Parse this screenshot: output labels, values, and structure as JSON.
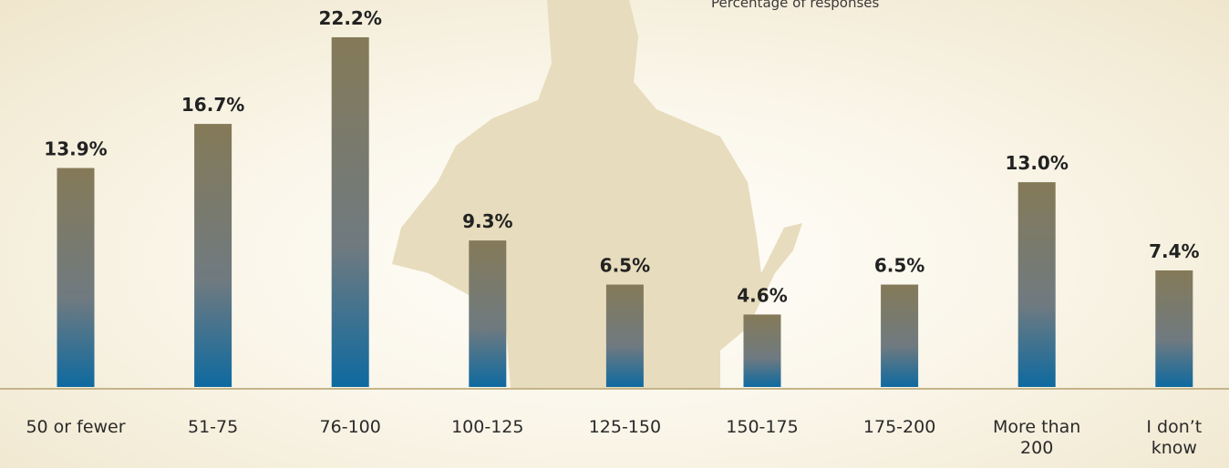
{
  "chart_data": {
    "type": "bar",
    "subtitle": "Percentage of responses",
    "categories": [
      "50 or fewer",
      "51-75",
      "76-100",
      "100-125",
      "125-150",
      "150-175",
      "175-200",
      "More than 200",
      "I don’t know"
    ],
    "values": [
      13.9,
      16.7,
      22.2,
      9.3,
      6.5,
      4.6,
      6.5,
      13.0,
      7.4
    ],
    "value_labels": [
      "13.9%",
      "16.7%",
      "22.2%",
      "9.3%",
      "6.5%",
      "4.6%",
      "6.5%",
      "13.0%",
      "7.4%"
    ],
    "color_top": "#857a58",
    "color_bottom": "#0e6aa0"
  }
}
